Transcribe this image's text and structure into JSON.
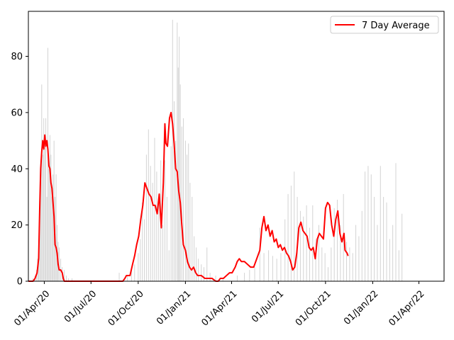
{
  "chart_data": {
    "type": "bar",
    "title": "",
    "xlabel": "",
    "ylabel": "",
    "x_start": "2020-03-01",
    "x_end": "2022-05-20",
    "ylim": [
      0,
      96
    ],
    "y_ticks": [
      0,
      20,
      40,
      60,
      80
    ],
    "x_ticks": [
      {
        "date": "2020-04-01",
        "label": "01/Apr/20"
      },
      {
        "date": "2020-07-01",
        "label": "01/Jul/20"
      },
      {
        "date": "2020-10-01",
        "label": "01/Oct/20"
      },
      {
        "date": "2021-01-01",
        "label": "01/Jan/21"
      },
      {
        "date": "2021-04-01",
        "label": "01/Apr/21"
      },
      {
        "date": "2021-07-01",
        "label": "01/Jul/21"
      },
      {
        "date": "2021-10-01",
        "label": "01/Oct/21"
      },
      {
        "date": "2022-01-01",
        "label": "01/Jan/22"
      },
      {
        "date": "2022-04-01",
        "label": "01/Apr/22"
      }
    ],
    "grid": false,
    "legend_position": "top-right",
    "bar_color": "#d3d3d3",
    "line_color": "#ff0000",
    "daily_series": {
      "bars_description_note_removed": true,
      "points": [
        [
          "2020-03-10",
          1
        ],
        [
          "2020-03-14",
          2
        ],
        [
          "2020-03-17",
          4
        ],
        [
          "2020-03-19",
          8
        ],
        [
          "2020-03-21",
          14
        ],
        [
          "2020-03-23",
          29
        ],
        [
          "2020-03-25",
          35
        ],
        [
          "2020-03-27",
          70
        ],
        [
          "2020-03-29",
          45
        ],
        [
          "2020-03-31",
          58
        ],
        [
          "2020-04-02",
          50
        ],
        [
          "2020-04-04",
          58
        ],
        [
          "2020-04-06",
          30
        ],
        [
          "2020-04-08",
          83
        ],
        [
          "2020-04-10",
          40
        ],
        [
          "2020-04-12",
          52
        ],
        [
          "2020-04-14",
          45
        ],
        [
          "2020-04-16",
          30
        ],
        [
          "2020-04-18",
          38
        ],
        [
          "2020-04-20",
          50
        ],
        [
          "2020-04-22",
          30
        ],
        [
          "2020-04-24",
          38
        ],
        [
          "2020-04-26",
          20
        ],
        [
          "2020-04-28",
          14
        ],
        [
          "2020-04-30",
          12
        ],
        [
          "2020-05-03",
          8
        ],
        [
          "2020-05-06",
          5
        ],
        [
          "2020-05-10",
          4
        ],
        [
          "2020-05-14",
          2
        ],
        [
          "2020-05-18",
          1
        ],
        [
          "2020-05-25",
          1
        ],
        [
          "2020-08-25",
          3
        ],
        [
          "2020-09-10",
          2
        ],
        [
          "2020-09-18",
          4
        ],
        [
          "2020-09-24",
          6
        ],
        [
          "2020-10-01",
          10
        ],
        [
          "2020-10-05",
          15
        ],
        [
          "2020-10-09",
          28
        ],
        [
          "2020-10-13",
          22
        ],
        [
          "2020-10-17",
          45
        ],
        [
          "2020-10-21",
          54
        ],
        [
          "2020-10-25",
          41
        ],
        [
          "2020-10-29",
          35
        ],
        [
          "2020-11-02",
          51
        ],
        [
          "2020-11-06",
          39
        ],
        [
          "2020-11-10",
          30
        ],
        [
          "2020-11-14",
          43
        ],
        [
          "2020-11-18",
          20
        ],
        [
          "2020-11-22",
          43
        ],
        [
          "2020-11-26",
          30
        ],
        [
          "2020-11-30",
          11
        ],
        [
          "2020-12-04",
          48
        ],
        [
          "2020-12-07",
          93
        ],
        [
          "2020-12-10",
          64
        ],
        [
          "2020-12-13",
          50
        ],
        [
          "2020-12-16",
          92
        ],
        [
          "2020-12-18",
          76
        ],
        [
          "2020-12-20",
          87
        ],
        [
          "2020-12-22",
          70
        ],
        [
          "2020-12-25",
          55
        ],
        [
          "2020-12-28",
          58
        ],
        [
          "2021-01-01",
          50
        ],
        [
          "2021-01-04",
          45
        ],
        [
          "2021-01-07",
          49
        ],
        [
          "2021-01-10",
          35
        ],
        [
          "2021-01-14",
          30
        ],
        [
          "2021-01-18",
          16
        ],
        [
          "2021-01-22",
          12
        ],
        [
          "2021-01-26",
          8
        ],
        [
          "2021-02-01",
          6
        ],
        [
          "2021-02-06",
          5
        ],
        [
          "2021-02-12",
          12
        ],
        [
          "2021-02-18",
          3
        ],
        [
          "2021-03-01",
          2
        ],
        [
          "2021-03-15",
          1
        ],
        [
          "2021-04-12",
          2
        ],
        [
          "2021-04-26",
          3
        ],
        [
          "2021-05-06",
          4
        ],
        [
          "2021-05-16",
          5
        ],
        [
          "2021-05-26",
          19
        ],
        [
          "2021-06-03",
          10
        ],
        [
          "2021-06-12",
          11
        ],
        [
          "2021-06-20",
          9
        ],
        [
          "2021-06-28",
          8
        ],
        [
          "2021-07-06",
          10
        ],
        [
          "2021-07-14",
          22
        ],
        [
          "2021-07-20",
          31
        ],
        [
          "2021-07-26",
          34
        ],
        [
          "2021-08-01",
          39
        ],
        [
          "2021-08-07",
          30
        ],
        [
          "2021-08-13",
          25
        ],
        [
          "2021-08-19",
          23
        ],
        [
          "2021-08-25",
          27
        ],
        [
          "2021-08-31",
          19
        ],
        [
          "2021-09-06",
          27
        ],
        [
          "2021-09-12",
          15
        ],
        [
          "2021-09-18",
          20
        ],
        [
          "2021-09-24",
          12
        ],
        [
          "2021-09-30",
          10
        ],
        [
          "2021-10-06",
          5
        ],
        [
          "2021-10-12",
          12
        ],
        [
          "2021-10-18",
          26
        ],
        [
          "2021-10-24",
          29
        ],
        [
          "2021-10-30",
          20
        ],
        [
          "2021-11-05",
          31
        ],
        [
          "2021-11-11",
          14
        ],
        [
          "2021-11-17",
          12
        ],
        [
          "2021-11-23",
          10
        ],
        [
          "2021-11-29",
          20
        ],
        [
          "2021-12-05",
          16
        ],
        [
          "2021-12-11",
          25
        ],
        [
          "2021-12-17",
          39
        ],
        [
          "2021-12-23",
          41
        ],
        [
          "2021-12-29",
          38
        ],
        [
          "2022-01-04",
          30
        ],
        [
          "2022-01-10",
          20
        ],
        [
          "2022-01-16",
          41
        ],
        [
          "2022-01-22",
          30
        ],
        [
          "2022-01-28",
          28
        ],
        [
          "2022-02-03",
          15
        ],
        [
          "2022-02-09",
          20
        ],
        [
          "2022-02-15",
          42
        ],
        [
          "2022-02-21",
          11
        ],
        [
          "2022-02-27",
          24
        ]
      ]
    },
    "series": [
      {
        "name": "7 Day Average",
        "points": [
          [
            "2020-03-01",
            0
          ],
          [
            "2020-03-10",
            0
          ],
          [
            "2020-03-14",
            1
          ],
          [
            "2020-03-18",
            3
          ],
          [
            "2020-03-21",
            8
          ],
          [
            "2020-03-23",
            25
          ],
          [
            "2020-03-25",
            40
          ],
          [
            "2020-03-27",
            46
          ],
          [
            "2020-03-29",
            50
          ],
          [
            "2020-03-31",
            47
          ],
          [
            "2020-04-02",
            52
          ],
          [
            "2020-04-04",
            48
          ],
          [
            "2020-04-06",
            50
          ],
          [
            "2020-04-08",
            47
          ],
          [
            "2020-04-10",
            41
          ],
          [
            "2020-04-12",
            40
          ],
          [
            "2020-04-14",
            35
          ],
          [
            "2020-04-16",
            33
          ],
          [
            "2020-04-18",
            28
          ],
          [
            "2020-04-20",
            23
          ],
          [
            "2020-04-22",
            13
          ],
          [
            "2020-04-24",
            12
          ],
          [
            "2020-04-26",
            10
          ],
          [
            "2020-04-28",
            6
          ],
          [
            "2020-04-30",
            4
          ],
          [
            "2020-05-03",
            4
          ],
          [
            "2020-05-06",
            3
          ],
          [
            "2020-05-08",
            1
          ],
          [
            "2020-05-10",
            0
          ],
          [
            "2020-09-01",
            0
          ],
          [
            "2020-09-05",
            1
          ],
          [
            "2020-09-08",
            2
          ],
          [
            "2020-09-15",
            2
          ],
          [
            "2020-09-20",
            6
          ],
          [
            "2020-09-24",
            9
          ],
          [
            "2020-09-28",
            13
          ],
          [
            "2020-10-02",
            16
          ],
          [
            "2020-10-06",
            22
          ],
          [
            "2020-10-10",
            27
          ],
          [
            "2020-10-14",
            35
          ],
          [
            "2020-10-18",
            33
          ],
          [
            "2020-10-22",
            31
          ],
          [
            "2020-10-26",
            30
          ],
          [
            "2020-10-30",
            27
          ],
          [
            "2020-11-03",
            27
          ],
          [
            "2020-11-07",
            24
          ],
          [
            "2020-11-11",
            31
          ],
          [
            "2020-11-15",
            19
          ],
          [
            "2020-11-19",
            35
          ],
          [
            "2020-11-22",
            56
          ],
          [
            "2020-11-24",
            49
          ],
          [
            "2020-11-27",
            48
          ],
          [
            "2020-12-01",
            58
          ],
          [
            "2020-12-04",
            60
          ],
          [
            "2020-12-07",
            56
          ],
          [
            "2020-12-10",
            49
          ],
          [
            "2020-12-13",
            40
          ],
          [
            "2020-12-16",
            39
          ],
          [
            "2020-12-19",
            32
          ],
          [
            "2020-12-22",
            28
          ],
          [
            "2020-12-25",
            20
          ],
          [
            "2020-12-28",
            13
          ],
          [
            "2021-01-01",
            11
          ],
          [
            "2021-01-05",
            7
          ],
          [
            "2021-01-09",
            5
          ],
          [
            "2021-01-13",
            4
          ],
          [
            "2021-01-17",
            5
          ],
          [
            "2021-01-21",
            3
          ],
          [
            "2021-01-25",
            2
          ],
          [
            "2021-02-01",
            2
          ],
          [
            "2021-02-08",
            1
          ],
          [
            "2021-02-15",
            1
          ],
          [
            "2021-02-22",
            1
          ],
          [
            "2021-03-01",
            0
          ],
          [
            "2021-03-06",
            0
          ],
          [
            "2021-03-10",
            1
          ],
          [
            "2021-03-16",
            1
          ],
          [
            "2021-03-22",
            2
          ],
          [
            "2021-03-28",
            3
          ],
          [
            "2021-04-02",
            3
          ],
          [
            "2021-04-08",
            5
          ],
          [
            "2021-04-12",
            7
          ],
          [
            "2021-04-16",
            8
          ],
          [
            "2021-04-20",
            7
          ],
          [
            "2021-04-26",
            7
          ],
          [
            "2021-05-02",
            6
          ],
          [
            "2021-05-08",
            5
          ],
          [
            "2021-05-14",
            5
          ],
          [
            "2021-05-20",
            8
          ],
          [
            "2021-05-26",
            11
          ],
          [
            "2021-05-30",
            19
          ],
          [
            "2021-06-03",
            23
          ],
          [
            "2021-06-07",
            18
          ],
          [
            "2021-06-11",
            20
          ],
          [
            "2021-06-15",
            16
          ],
          [
            "2021-06-19",
            18
          ],
          [
            "2021-06-23",
            14
          ],
          [
            "2021-06-27",
            15
          ],
          [
            "2021-07-01",
            12
          ],
          [
            "2021-07-05",
            13
          ],
          [
            "2021-07-09",
            11
          ],
          [
            "2021-07-13",
            12
          ],
          [
            "2021-07-17",
            10
          ],
          [
            "2021-07-21",
            9
          ],
          [
            "2021-07-25",
            7
          ],
          [
            "2021-07-29",
            4
          ],
          [
            "2021-08-02",
            5
          ],
          [
            "2021-08-06",
            10
          ],
          [
            "2021-08-10",
            19
          ],
          [
            "2021-08-14",
            21
          ],
          [
            "2021-08-18",
            18
          ],
          [
            "2021-08-22",
            17
          ],
          [
            "2021-08-26",
            16
          ],
          [
            "2021-08-30",
            12
          ],
          [
            "2021-09-03",
            11
          ],
          [
            "2021-09-07",
            12
          ],
          [
            "2021-09-11",
            8
          ],
          [
            "2021-09-15",
            15
          ],
          [
            "2021-09-19",
            17
          ],
          [
            "2021-09-23",
            16
          ],
          [
            "2021-09-27",
            15
          ],
          [
            "2021-10-01",
            26
          ],
          [
            "2021-10-05",
            28
          ],
          [
            "2021-10-09",
            27
          ],
          [
            "2021-10-13",
            20
          ],
          [
            "2021-10-17",
            16
          ],
          [
            "2021-10-21",
            22
          ],
          [
            "2021-10-25",
            25
          ],
          [
            "2021-10-29",
            17
          ],
          [
            "2021-11-02",
            14
          ],
          [
            "2021-11-06",
            17
          ],
          [
            "2021-11-08",
            11
          ],
          [
            "2021-11-12",
            10
          ],
          [
            "2021-11-14",
            9
          ]
        ]
      }
    ]
  }
}
